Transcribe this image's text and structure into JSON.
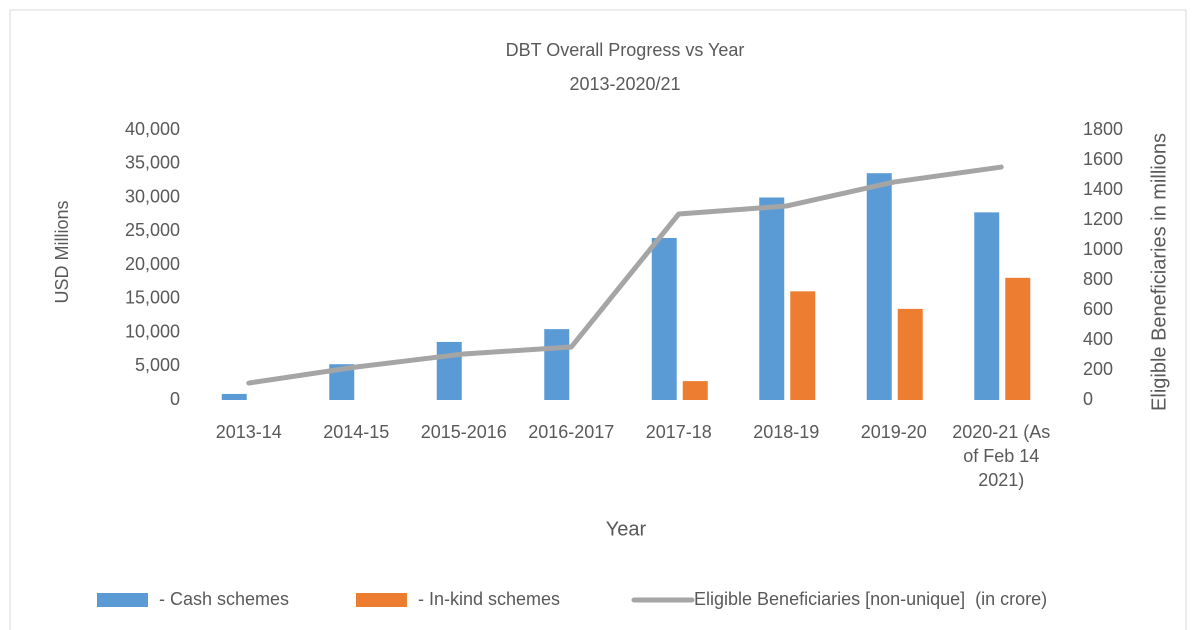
{
  "chart_data": {
    "type": "bar-line",
    "title": "DBT Overall Progress vs Year",
    "subtitle": "2013-2020/21",
    "x_label": "Year",
    "y_label": "USD Millions",
    "y2_label": "Eligible Beneficiaries in millions",
    "categories": [
      "2013-14",
      "2014-15",
      "2015-2016",
      "2016-2017",
      "2017-18",
      "2018-19",
      "2019-20",
      "2020-21 (As of Feb 14 2021)"
    ],
    "series": [
      {
        "name": "- Cash schemes",
        "type": "bar",
        "color": "#5b9bd5",
        "values": [
          900,
          5300,
          8600,
          10500,
          24000,
          30000,
          33600,
          27800
        ]
      },
      {
        "name": "- In-kind schemes",
        "type": "bar",
        "color": "#ed7d31",
        "values": [
          null,
          null,
          null,
          null,
          2800,
          16100,
          13500,
          18100
        ]
      },
      {
        "name": "Eligible Beneficiaries [non-unique]  (in crore)",
        "type": "line",
        "axis": "y2",
        "color": "#a5a5a5",
        "values": [
          113,
          220,
          307,
          353,
          1240,
          1293,
          1453,
          1553
        ]
      }
    ],
    "ylim": [
      0,
      40000
    ],
    "yticks": [
      0,
      {
        "value": 5000,
        "label": "5,000"
      },
      {
        "value": 10000,
        "label": "10,000"
      },
      {
        "value": 15000,
        "label": "15,000"
      },
      {
        "value": 20000,
        "label": "20,000"
      },
      {
        "value": 25000,
        "label": "25,000"
      },
      {
        "value": 30000,
        "label": "30,000"
      },
      {
        "value": 35000,
        "label": "35,000"
      },
      {
        "value": 40000,
        "label": "40,000"
      }
    ],
    "y2lim": [
      0,
      1800
    ],
    "y2ticks": [
      0,
      200,
      400,
      600,
      800,
      1000,
      1200,
      1400,
      1600,
      1800
    ],
    "grid": false,
    "legend": "bottom"
  }
}
